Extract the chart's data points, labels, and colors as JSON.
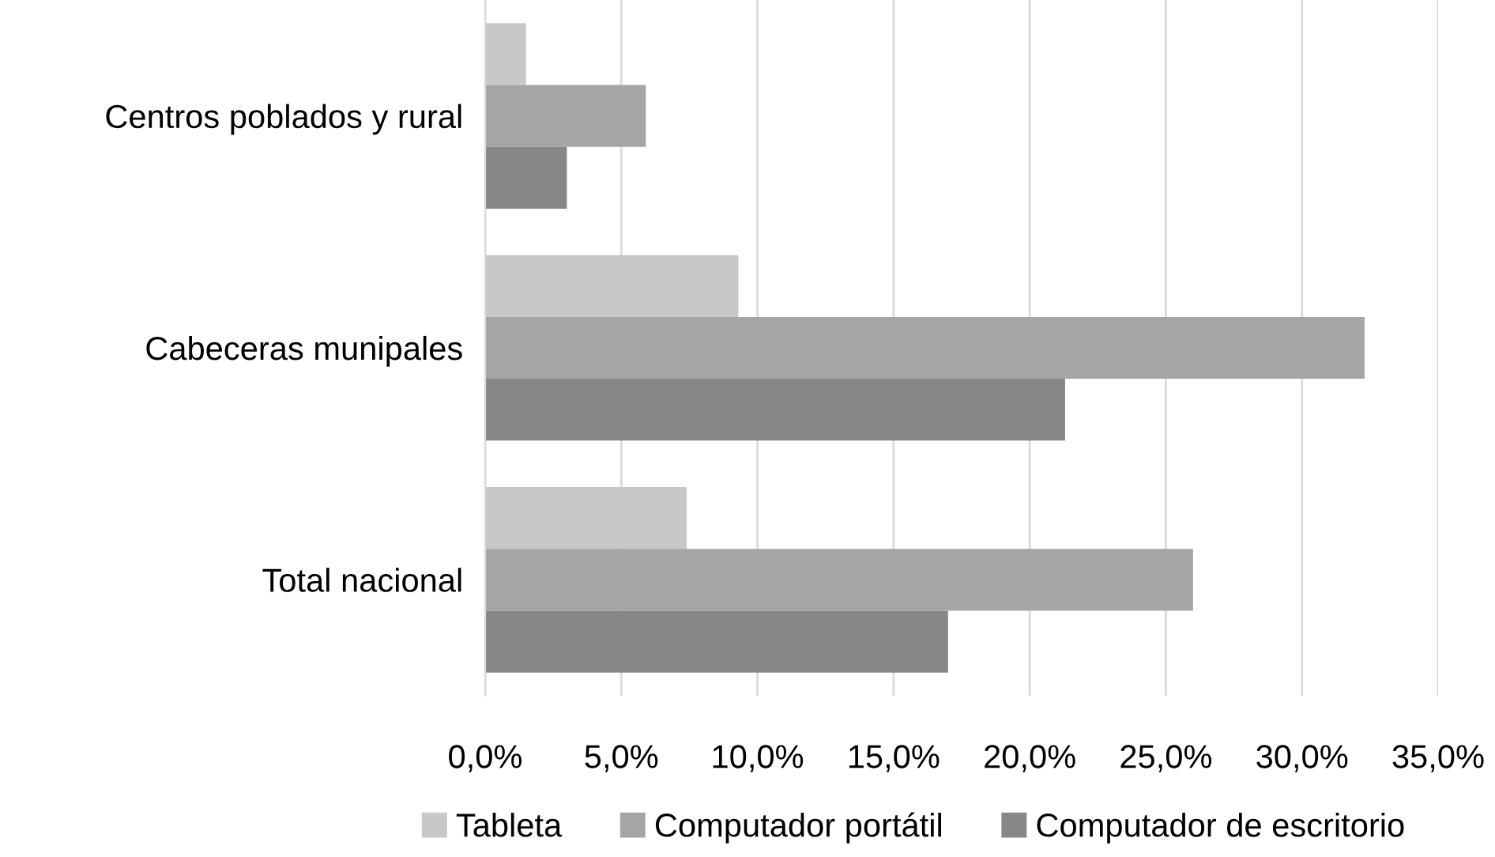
{
  "chart_data": {
    "type": "bar",
    "orientation": "horizontal",
    "categories": [
      "Centros poblados y rural",
      "Cabeceras munipales",
      "Total nacional"
    ],
    "series": [
      {
        "name": "Tableta",
        "color": "#c8c8c8",
        "values": [
          1.5,
          9.3,
          7.4
        ]
      },
      {
        "name": "Computador portátil",
        "color": "#a5a5a5",
        "values": [
          5.9,
          32.3,
          26.0
        ]
      },
      {
        "name": "Computador de escritorio",
        "color": "#878787",
        "values": [
          3.0,
          21.3,
          17.0
        ]
      }
    ],
    "xlim": [
      0,
      35
    ],
    "xticks": [
      {
        "value": 0,
        "label": "0,0%"
      },
      {
        "value": 5,
        "label": "5,0%"
      },
      {
        "value": 10,
        "label": "10,0%"
      },
      {
        "value": 15,
        "label": "15,0%"
      },
      {
        "value": 20,
        "label": "20,0%"
      },
      {
        "value": 25,
        "label": "25,0%"
      },
      {
        "value": 30,
        "label": "30,0%"
      },
      {
        "value": 35,
        "label": "35,0%"
      }
    ],
    "grid": "x",
    "legend": "bottom"
  }
}
